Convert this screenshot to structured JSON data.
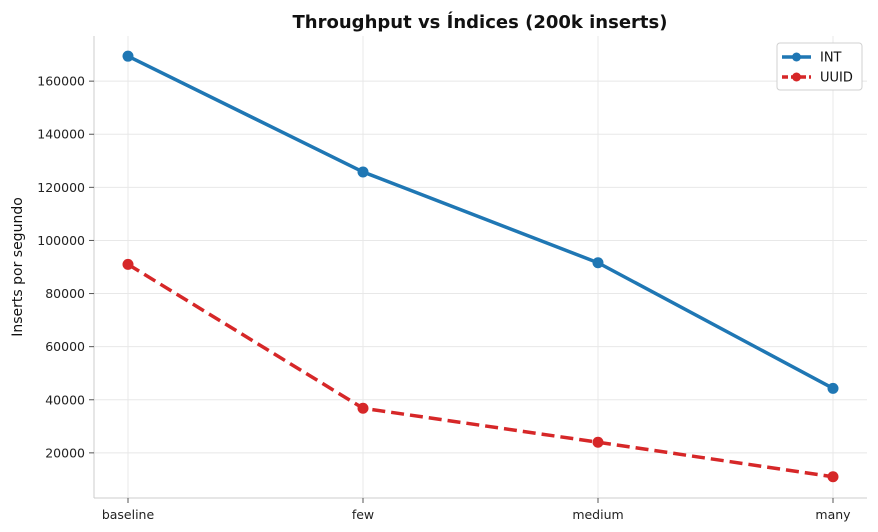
{
  "chart_data": {
    "type": "line",
    "title": "Throughput vs Índices (200k inserts)",
    "xlabel": "",
    "ylabel": "Inserts por segundo",
    "categories": [
      "baseline",
      "few",
      "medium",
      "many"
    ],
    "ylim": [
      3000,
      177000
    ],
    "yticks": [
      20000,
      40000,
      60000,
      80000,
      100000,
      120000,
      140000,
      160000
    ],
    "grid": true,
    "legend_position": "top-right",
    "series": [
      {
        "name": "INT",
        "values": [
          169400,
          125800,
          91600,
          44300
        ],
        "color": "#1f77b4",
        "dash": "solid"
      },
      {
        "name": "UUID",
        "values": [
          91000,
          36800,
          24000,
          11000
        ],
        "color": "#d62728",
        "dash": "dashed"
      }
    ]
  }
}
